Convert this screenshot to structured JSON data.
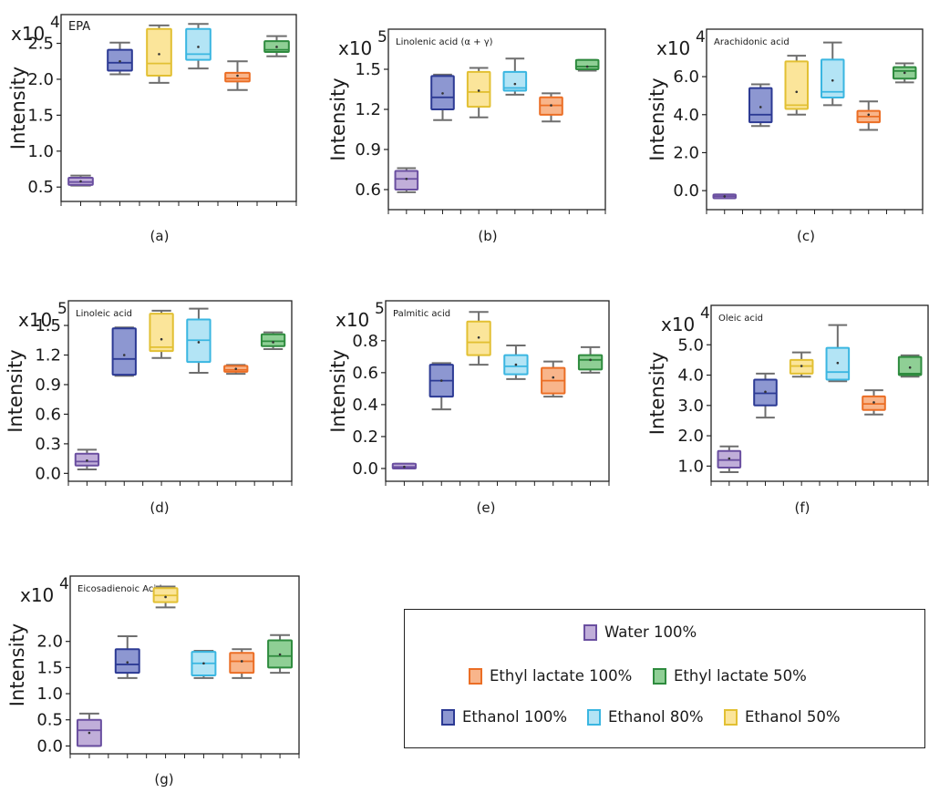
{
  "figure": {
    "colors": {
      "water_100": {
        "fill": "#c0aed9",
        "stroke": "#6a4fa0"
      },
      "ethanol_100": {
        "fill": "#8d97d1",
        "stroke": "#2c3a94"
      },
      "ethanol_50": {
        "fill": "#fbe59a",
        "stroke": "#e2c033"
      },
      "ethanol_80": {
        "fill": "#b3e4f5",
        "stroke": "#3ab6e1"
      },
      "ethyl_lactate_100": {
        "fill": "#f8b58b",
        "stroke": "#eb6e25"
      },
      "ethyl_lactate_50": {
        "fill": "#8fcf95",
        "stroke": "#2e8b3e"
      }
    },
    "legend": {
      "water_100": "Water 100%",
      "ethyl_lactate_100": "Ethyl lactate 100%",
      "ethyl_lactate_50": "Ethyl lactate 50%",
      "ethanol_100": "Ethanol 100%",
      "ethanol_80": "Ethanol 80%",
      "ethanol_50": "Ethanol 50%"
    }
  },
  "chart_data": [
    {
      "type": "box",
      "panel_label": "(a)",
      "title": "EPA",
      "ylabel": "Intensity",
      "multiplier_base": "x10",
      "multiplier_exp": "4",
      "ylim": [
        0.3,
        2.9
      ],
      "yticks": [
        0.5,
        1.0,
        1.5,
        2.0,
        2.5
      ],
      "tick_labels": [
        "0.5",
        "1.0",
        "1.5",
        "2.0",
        "2.5"
      ],
      "series_order": [
        "water_100",
        "ethanol_100",
        "ethanol_50",
        "ethanol_80",
        "ethyl_lactate_100",
        "ethyl_lactate_50"
      ],
      "boxes": [
        {
          "min": 0.52,
          "q1": 0.53,
          "median": 0.57,
          "q3": 0.63,
          "max": 0.66,
          "mean": 0.58
        },
        {
          "min": 2.07,
          "q1": 2.12,
          "median": 2.23,
          "q3": 2.41,
          "max": 2.51,
          "mean": 2.25
        },
        {
          "min": 1.95,
          "q1": 2.05,
          "median": 2.22,
          "q3": 2.7,
          "max": 2.75,
          "mean": 2.35
        },
        {
          "min": 2.15,
          "q1": 2.27,
          "median": 2.35,
          "q3": 2.7,
          "max": 2.77,
          "mean": 2.45
        },
        {
          "min": 1.85,
          "q1": 1.97,
          "median": 2.01,
          "q3": 2.09,
          "max": 2.25,
          "mean": 2.05
        },
        {
          "min": 2.32,
          "q1": 2.38,
          "median": 2.41,
          "q3": 2.53,
          "max": 2.6,
          "mean": 2.45
        }
      ]
    },
    {
      "type": "box",
      "panel_label": "(b)",
      "title": "Linolenic acid (α + γ)",
      "ylabel": "Intensity",
      "multiplier_base": "x10",
      "multiplier_exp": "5",
      "ylim": [
        0.45,
        1.8
      ],
      "yticks": [
        0.6,
        0.9,
        1.2,
        1.5
      ],
      "tick_labels": [
        "0.6",
        "0.9",
        "1.2",
        "1.5"
      ],
      "series_order": [
        "water_100",
        "ethanol_100",
        "ethanol_50",
        "ethanol_80",
        "ethyl_lactate_100",
        "ethyl_lactate_50"
      ],
      "boxes": [
        {
          "min": 0.58,
          "q1": 0.6,
          "median": 0.68,
          "q3": 0.74,
          "max": 0.76,
          "mean": 0.68
        },
        {
          "min": 1.12,
          "q1": 1.2,
          "median": 1.29,
          "q3": 1.45,
          "max": 1.46,
          "mean": 1.32
        },
        {
          "min": 1.14,
          "q1": 1.22,
          "median": 1.33,
          "q3": 1.48,
          "max": 1.51,
          "mean": 1.34
        },
        {
          "min": 1.31,
          "q1": 1.34,
          "median": 1.36,
          "q3": 1.48,
          "max": 1.58,
          "mean": 1.39
        },
        {
          "min": 1.11,
          "q1": 1.16,
          "median": 1.23,
          "q3": 1.29,
          "max": 1.32,
          "mean": 1.23
        },
        {
          "min": 1.49,
          "q1": 1.5,
          "median": 1.52,
          "q3": 1.57,
          "max": 1.57,
          "mean": 1.52
        }
      ]
    },
    {
      "type": "box",
      "panel_label": "(c)",
      "title": "Arachidonic acid",
      "ylabel": "Intensity",
      "multiplier_base": "x10",
      "multiplier_exp": "4",
      "ylim": [
        -1.0,
        8.5
      ],
      "yticks": [
        0.0,
        2.0,
        4.0,
        6.0
      ],
      "tick_labels": [
        "0.0",
        "2.0",
        "4.0",
        "6.0"
      ],
      "series_order": [
        "water_100",
        "ethanol_100",
        "ethanol_50",
        "ethanol_80",
        "ethyl_lactate_100",
        "ethyl_lactate_50"
      ],
      "boxes": [
        {
          "min": -0.4,
          "q1": -0.4,
          "median": -0.3,
          "q3": -0.2,
          "max": -0.2,
          "mean": -0.3
        },
        {
          "min": 3.4,
          "q1": 3.6,
          "median": 4.0,
          "q3": 5.4,
          "max": 5.6,
          "mean": 4.4
        },
        {
          "min": 4.0,
          "q1": 4.3,
          "median": 4.5,
          "q3": 6.8,
          "max": 7.1,
          "mean": 5.2
        },
        {
          "min": 4.5,
          "q1": 4.9,
          "median": 5.2,
          "q3": 6.9,
          "max": 7.8,
          "mean": 5.8
        },
        {
          "min": 3.2,
          "q1": 3.6,
          "median": 3.9,
          "q3": 4.2,
          "max": 4.7,
          "mean": 4.0
        },
        {
          "min": 5.7,
          "q1": 5.9,
          "median": 6.3,
          "q3": 6.5,
          "max": 6.7,
          "mean": 6.2
        }
      ]
    },
    {
      "type": "box",
      "panel_label": "(d)",
      "title": "Linoleic acid",
      "ylabel": "Intensity",
      "multiplier_base": "x10",
      "multiplier_exp": "5",
      "ylim": [
        -0.08,
        1.75
      ],
      "yticks": [
        0.0,
        0.3,
        0.6,
        0.9,
        1.2,
        1.5
      ],
      "tick_labels": [
        "0.0",
        "0.3",
        "0.6",
        "0.9",
        "1.2",
        "1.5"
      ],
      "series_order": [
        "water_100",
        "ethanol_100",
        "ethanol_50",
        "ethanol_80",
        "ethyl_lactate_100",
        "ethyl_lactate_50"
      ],
      "boxes": [
        {
          "min": 0.04,
          "q1": 0.08,
          "median": 0.12,
          "q3": 0.2,
          "max": 0.24,
          "mean": 0.13
        },
        {
          "min": 0.99,
          "q1": 1.0,
          "median": 1.16,
          "q3": 1.47,
          "max": 1.48,
          "mean": 1.2
        },
        {
          "min": 1.17,
          "q1": 1.24,
          "median": 1.28,
          "q3": 1.62,
          "max": 1.65,
          "mean": 1.36
        },
        {
          "min": 1.02,
          "q1": 1.13,
          "median": 1.35,
          "q3": 1.56,
          "max": 1.67,
          "mean": 1.33
        },
        {
          "min": 1.01,
          "q1": 1.03,
          "median": 1.05,
          "q3": 1.09,
          "max": 1.1,
          "mean": 1.06
        },
        {
          "min": 1.26,
          "q1": 1.29,
          "median": 1.34,
          "q3": 1.41,
          "max": 1.43,
          "mean": 1.33
        }
      ]
    },
    {
      "type": "box",
      "panel_label": "(e)",
      "title": "Palmitic acid",
      "ylabel": "Intensity",
      "multiplier_base": "x10",
      "multiplier_exp": "5",
      "ylim": [
        -0.08,
        1.05
      ],
      "yticks": [
        0.0,
        0.2,
        0.4,
        0.6,
        0.8
      ],
      "tick_labels": [
        "0.0",
        "0.2",
        "0.4",
        "0.6",
        "0.8"
      ],
      "series_order": [
        "water_100",
        "ethanol_100",
        "ethanol_50",
        "ethanol_80",
        "ethyl_lactate_100",
        "ethyl_lactate_50"
      ],
      "boxes": [
        {
          "min": 0.0,
          "q1": 0.0,
          "median": 0.01,
          "q3": 0.03,
          "max": 0.03,
          "mean": 0.01
        },
        {
          "min": 0.37,
          "q1": 0.45,
          "median": 0.55,
          "q3": 0.65,
          "max": 0.66,
          "mean": 0.55
        },
        {
          "min": 0.65,
          "q1": 0.71,
          "median": 0.79,
          "q3": 0.92,
          "max": 0.98,
          "mean": 0.82
        },
        {
          "min": 0.56,
          "q1": 0.59,
          "median": 0.64,
          "q3": 0.71,
          "max": 0.77,
          "mean": 0.65
        },
        {
          "min": 0.45,
          "q1": 0.47,
          "median": 0.55,
          "q3": 0.63,
          "max": 0.67,
          "mean": 0.57
        },
        {
          "min": 0.6,
          "q1": 0.62,
          "median": 0.68,
          "q3": 0.71,
          "max": 0.76,
          "mean": 0.68
        }
      ]
    },
    {
      "type": "box",
      "panel_label": "(f)",
      "title": "Oleic acid",
      "ylabel": "Intensity",
      "multiplier_base": "x10",
      "multiplier_exp": "4",
      "ylim": [
        0.5,
        6.3
      ],
      "yticks": [
        1.0,
        2.0,
        3.0,
        4.0,
        5.0
      ],
      "tick_labels": [
        "1.0",
        "2.0",
        "3.0",
        "4.0",
        "5.0"
      ],
      "series_order": [
        "water_100",
        "ethanol_100",
        "ethanol_50",
        "ethanol_80",
        "ethyl_lactate_100",
        "ethyl_lactate_50"
      ],
      "boxes": [
        {
          "min": 0.8,
          "q1": 0.95,
          "median": 1.2,
          "q3": 1.5,
          "max": 1.65,
          "mean": 1.25
        },
        {
          "min": 2.6,
          "q1": 3.0,
          "median": 3.4,
          "q3": 3.85,
          "max": 4.05,
          "mean": 3.45
        },
        {
          "min": 3.95,
          "q1": 4.05,
          "median": 4.3,
          "q3": 4.5,
          "max": 4.75,
          "mean": 4.3
        },
        {
          "min": 3.8,
          "q1": 3.85,
          "median": 4.1,
          "q3": 4.9,
          "max": 5.65,
          "mean": 4.4
        },
        {
          "min": 2.7,
          "q1": 2.85,
          "median": 3.05,
          "q3": 3.3,
          "max": 3.5,
          "mean": 3.1
        },
        {
          "min": 3.95,
          "q1": 4.0,
          "median": 4.05,
          "q3": 4.6,
          "max": 4.65,
          "mean": 4.25
        }
      ]
    },
    {
      "type": "box",
      "panel_label": "(g)",
      "title": "Eicosadienoic Acid",
      "ylabel": "Intensity",
      "multiplier_base": "x10",
      "multiplier_exp": "4",
      "ylim": [
        -0.15,
        3.25
      ],
      "yticks": [
        0.0,
        0.5,
        1.0,
        1.5,
        2.0
      ],
      "tick_labels": [
        "0.0",
        "0.5",
        "1.0",
        "1.5",
        "2.0"
      ],
      "series_order": [
        "water_100",
        "ethanol_100",
        "ethanol_50",
        "ethanol_80",
        "ethyl_lactate_100",
        "ethyl_lactate_50"
      ],
      "boxes": [
        {
          "min": 0.0,
          "q1": 0.0,
          "median": 0.3,
          "q3": 0.5,
          "max": 0.62,
          "mean": 0.25
        },
        {
          "min": 1.3,
          "q1": 1.4,
          "median": 1.56,
          "q3": 1.85,
          "max": 2.1,
          "mean": 1.6
        },
        {
          "min": 2.65,
          "q1": 2.75,
          "median": 2.88,
          "q3": 3.02,
          "max": 3.05,
          "mean": 2.85
        },
        {
          "min": 1.3,
          "q1": 1.35,
          "median": 1.58,
          "q3": 1.8,
          "max": 1.82,
          "mean": 1.58
        },
        {
          "min": 1.3,
          "q1": 1.4,
          "median": 1.62,
          "q3": 1.78,
          "max": 1.85,
          "mean": 1.62
        },
        {
          "min": 1.4,
          "q1": 1.5,
          "median": 1.72,
          "q3": 2.02,
          "max": 2.12,
          "mean": 1.75
        }
      ]
    }
  ]
}
